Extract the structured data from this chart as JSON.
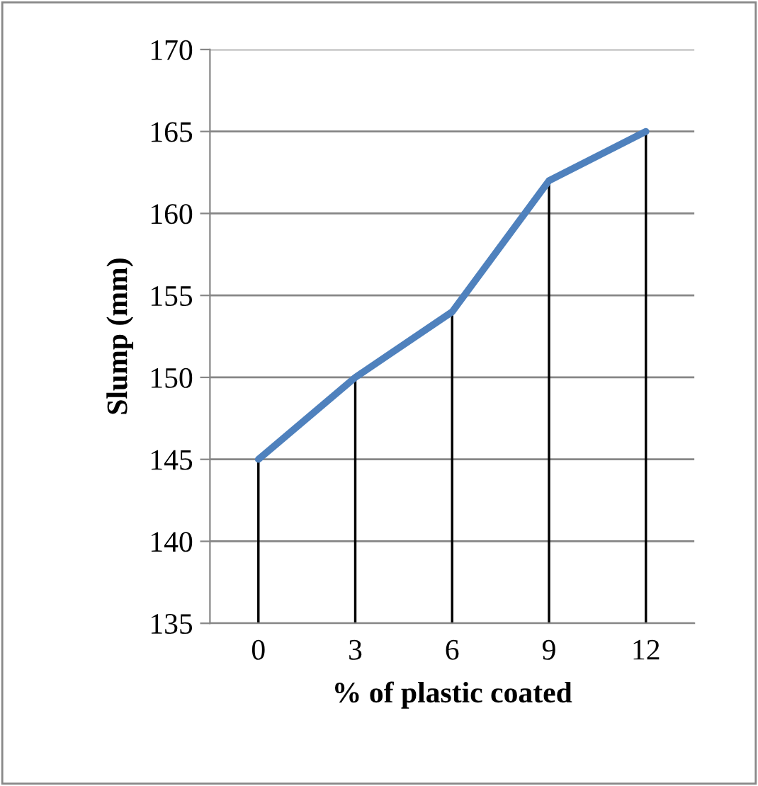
{
  "chart_data": {
    "type": "line",
    "xlabel": "% of plastic coated",
    "ylabel": "Slump (mm)",
    "categories": [
      "0",
      "3",
      "6",
      "9",
      "12"
    ],
    "series": [
      {
        "type": "bar",
        "color": "#000000",
        "values": [
          145,
          150,
          154,
          162,
          165
        ]
      },
      {
        "color": "#4f81bd",
        "values": [
          145,
          150,
          154,
          162,
          165
        ]
      }
    ],
    "ylim": [
      135,
      170
    ],
    "yticks": [
      135,
      140,
      145,
      150,
      155,
      160,
      165,
      170
    ],
    "grid": "y",
    "marker": "none",
    "line_style": "solid"
  }
}
